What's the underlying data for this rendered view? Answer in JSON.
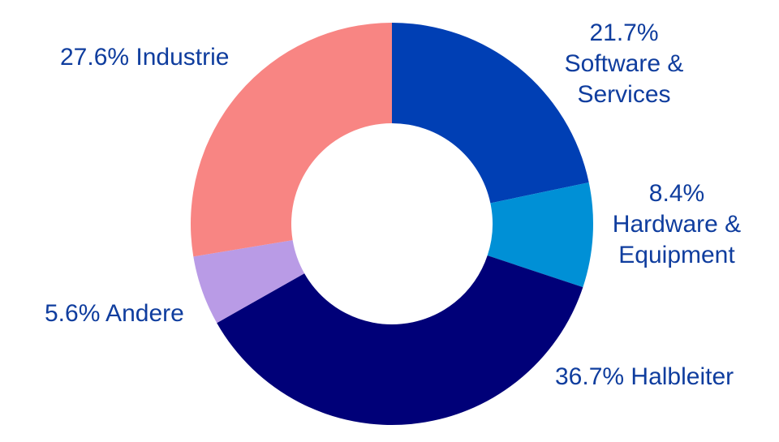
{
  "chart_data": {
    "type": "pie",
    "subtype": "donut",
    "categories": [
      "Software & Services",
      "Hardware & Equipment",
      "Halbleiter",
      "Andere",
      "Industrie"
    ],
    "values": [
      21.7,
      8.4,
      36.7,
      5.6,
      27.6
    ],
    "unit": "%",
    "colors": [
      "#003fb4",
      "#0090d6",
      "#000078",
      "#b99be6",
      "#f88583"
    ],
    "start_angle_deg": 0,
    "direction": "clockwise",
    "labels": {
      "software": {
        "pct": "21.7%",
        "lines": [
          "Software &",
          "Services"
        ]
      },
      "hardware": {
        "pct": "8.4%",
        "lines": [
          "Hardware &",
          "Equipment"
        ]
      },
      "halbleiter": {
        "text": "36.7% Halbleiter"
      },
      "andere": {
        "text": "5.6% Andere"
      },
      "industrie": {
        "text": "27.6% Industrie"
      }
    },
    "label_color": "#0f3d9e",
    "legend": "none"
  }
}
